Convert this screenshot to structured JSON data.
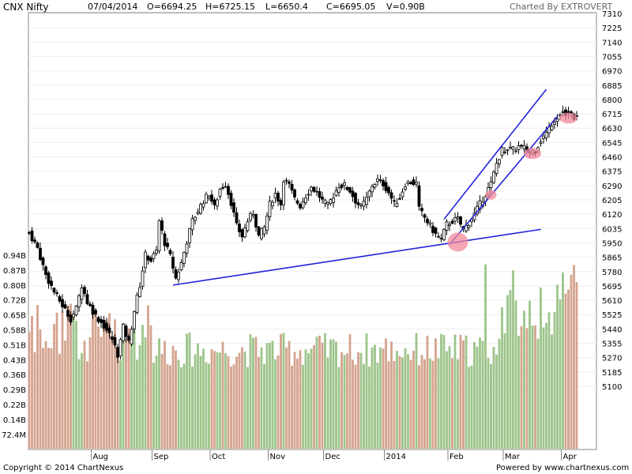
{
  "header": {
    "symbol": "CNX Nifty",
    "date": "07/04/2014",
    "open": "O=6694.25",
    "high": "H=6725.15",
    "low": "L=6650.4",
    "close": "C=6695.05",
    "volume": "V=0.90B",
    "credit": "Charted By EXTROVERT"
  },
  "footer": {
    "copyright": "Copyright © 2014 ChartNexus",
    "powered": "Powered by www.chartnexus.com"
  },
  "colors": {
    "up_volume": "#9dc48a",
    "down_volume": "#d4a38e",
    "candle": "#000000",
    "trendline": "#2222dd",
    "highlight": "#f08a9a"
  },
  "chart_data": {
    "type": "candlestick",
    "title": "CNX Nifty",
    "ylim": [
      5020,
      7310
    ],
    "y_ticks": [
      7310,
      7225,
      7140,
      7055,
      6970,
      6885,
      6800,
      6715,
      6630,
      6545,
      6460,
      6375,
      6290,
      6205,
      6120,
      6035,
      5950,
      5865,
      5780,
      5695,
      5610,
      5525,
      5440,
      5355,
      5270,
      5185,
      5100
    ],
    "volume_ticks": [
      "0.94B",
      "0.87B",
      "0.80B",
      "0.72B",
      "0.65B",
      "0.58B",
      "0.51B",
      "0.43B",
      "0.36B",
      "0.29B",
      "0.22B",
      "0.14B",
      "72.4M"
    ],
    "volume_ylim": [
      0,
      1.01
    ],
    "x_ticks": [
      "Aug",
      "Sep",
      "Oct",
      "Nov",
      "Dec",
      "2014",
      "Feb",
      "Mar",
      "Apr"
    ],
    "x_tick_sessions": [
      23,
      45,
      66,
      87,
      107,
      129,
      152,
      172,
      193
    ],
    "sessions": 199,
    "anchors": [
      {
        "s": 0,
        "c": 6010
      },
      {
        "s": 3,
        "c": 5920
      },
      {
        "s": 6,
        "c": 5760
      },
      {
        "s": 9,
        "c": 5660
      },
      {
        "s": 12,
        "c": 5580
      },
      {
        "s": 15,
        "c": 5500
      },
      {
        "s": 17,
        "c": 5560
      },
      {
        "s": 19,
        "c": 5700
      },
      {
        "s": 21,
        "c": 5600
      },
      {
        "s": 24,
        "c": 5520
      },
      {
        "s": 27,
        "c": 5460
      },
      {
        "s": 30,
        "c": 5380
      },
      {
        "s": 32,
        "c": 5290
      },
      {
        "s": 34,
        "c": 5450
      },
      {
        "s": 36,
        "c": 5360
      },
      {
        "s": 38,
        "c": 5550
      },
      {
        "s": 40,
        "c": 5700
      },
      {
        "s": 42,
        "c": 5880
      },
      {
        "s": 44,
        "c": 5850
      },
      {
        "s": 46,
        "c": 5900
      },
      {
        "s": 47,
        "c": 6080
      },
      {
        "s": 49,
        "c": 5950
      },
      {
        "s": 51,
        "c": 5870
      },
      {
        "s": 53,
        "c": 5740
      },
      {
        "s": 55,
        "c": 5830
      },
      {
        "s": 57,
        "c": 5960
      },
      {
        "s": 59,
        "c": 6080
      },
      {
        "s": 61,
        "c": 6140
      },
      {
        "s": 63,
        "c": 6200
      },
      {
        "s": 65,
        "c": 6240
      },
      {
        "s": 67,
        "c": 6160
      },
      {
        "s": 69,
        "c": 6270
      },
      {
        "s": 71,
        "c": 6300
      },
      {
        "s": 73,
        "c": 6190
      },
      {
        "s": 75,
        "c": 6050
      },
      {
        "s": 77,
        "c": 5990
      },
      {
        "s": 79,
        "c": 6080
      },
      {
        "s": 81,
        "c": 6130
      },
      {
        "s": 83,
        "c": 5990
      },
      {
        "s": 85,
        "c": 6040
      },
      {
        "s": 87,
        "c": 6180
      },
      {
        "s": 89,
        "c": 6240
      },
      {
        "s": 91,
        "c": 6180
      },
      {
        "s": 92,
        "c": 6330
      },
      {
        "s": 94,
        "c": 6290
      },
      {
        "s": 96,
        "c": 6210
      },
      {
        "s": 98,
        "c": 6170
      },
      {
        "s": 100,
        "c": 6230
      },
      {
        "s": 102,
        "c": 6280
      },
      {
        "s": 104,
        "c": 6250
      },
      {
        "s": 106,
        "c": 6200
      },
      {
        "s": 108,
        "c": 6170
      },
      {
        "s": 110,
        "c": 6230
      },
      {
        "s": 112,
        "c": 6290
      },
      {
        "s": 114,
        "c": 6290
      },
      {
        "s": 116,
        "c": 6260
      },
      {
        "s": 118,
        "c": 6200
      },
      {
        "s": 120,
        "c": 6160
      },
      {
        "s": 122,
        "c": 6210
      },
      {
        "s": 124,
        "c": 6290
      },
      {
        "s": 126,
        "c": 6320
      },
      {
        "s": 128,
        "c": 6300
      },
      {
        "s": 130,
        "c": 6250
      },
      {
        "s": 132,
        "c": 6180
      },
      {
        "s": 134,
        "c": 6220
      },
      {
        "s": 136,
        "c": 6300
      },
      {
        "s": 138,
        "c": 6310
      },
      {
        "s": 140,
        "c": 6300
      },
      {
        "s": 141,
        "c": 6150
      },
      {
        "s": 143,
        "c": 6100
      },
      {
        "s": 145,
        "c": 6050
      },
      {
        "s": 147,
        "c": 6000
      },
      {
        "s": 149,
        "c": 5970
      },
      {
        "s": 151,
        "c": 6060
      },
      {
        "s": 153,
        "c": 6080
      },
      {
        "s": 155,
        "c": 6090
      },
      {
        "s": 157,
        "c": 6030
      },
      {
        "s": 159,
        "c": 6070
      },
      {
        "s": 161,
        "c": 6120
      },
      {
        "s": 163,
        "c": 6180
      },
      {
        "s": 165,
        "c": 6240
      },
      {
        "s": 167,
        "c": 6300
      },
      {
        "s": 169,
        "c": 6420
      },
      {
        "s": 171,
        "c": 6500
      },
      {
        "s": 173,
        "c": 6510
      },
      {
        "s": 175,
        "c": 6500
      },
      {
        "s": 177,
        "c": 6520
      },
      {
        "s": 179,
        "c": 6510
      },
      {
        "s": 181,
        "c": 6490
      },
      {
        "s": 183,
        "c": 6500
      },
      {
        "s": 185,
        "c": 6560
      },
      {
        "s": 187,
        "c": 6600
      },
      {
        "s": 189,
        "c": 6660
      },
      {
        "s": 191,
        "c": 6700
      },
      {
        "s": 193,
        "c": 6730
      },
      {
        "s": 195,
        "c": 6720
      },
      {
        "s": 197,
        "c": 6700
      },
      {
        "s": 198,
        "c": 6695
      }
    ],
    "trendlines": [
      {
        "s1": 52,
        "p1": 5700,
        "s2": 185,
        "p2": 6030
      },
      {
        "s1": 152,
        "p1": 5940,
        "s2": 191,
        "p2": 6700
      },
      {
        "s1": 150,
        "p1": 6090,
        "s2": 187,
        "p2": 6860
      }
    ],
    "highlights": [
      {
        "s": 155,
        "p": 5955,
        "size": "large"
      },
      {
        "s": 167,
        "p": 6235,
        "size": "small"
      },
      {
        "s": 182,
        "p": 6480,
        "size": "medium"
      },
      {
        "s": 195,
        "p": 6690,
        "size": "medium"
      }
    ]
  }
}
